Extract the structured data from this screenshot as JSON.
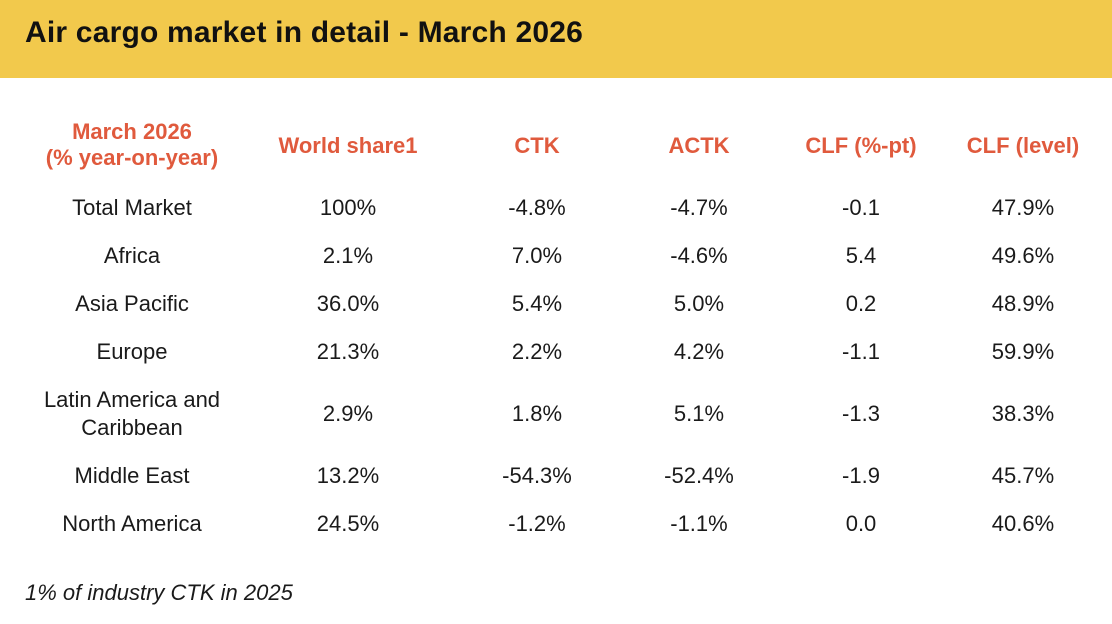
{
  "title": "Air cargo market in detail - March 2026",
  "headers": {
    "region_line1": "March 2026",
    "region_line2": "(% year-on-year)",
    "world_share": "World share1",
    "ctk": "CTK",
    "actk": "ACTK",
    "clf_pt": "CLF (%-pt)",
    "clf_level": "CLF (level)"
  },
  "rows": [
    {
      "region_line1": "Total Market",
      "region_line2": "",
      "world_share": "100%",
      "ctk": "-4.8%",
      "actk": "-4.7%",
      "clf_pt": "-0.1",
      "clf_level": "47.9%"
    },
    {
      "region_line1": "Africa",
      "region_line2": "",
      "world_share": "2.1%",
      "ctk": "7.0%",
      "actk": "-4.6%",
      "clf_pt": "5.4",
      "clf_level": "49.6%"
    },
    {
      "region_line1": "Asia Pacific",
      "region_line2": "",
      "world_share": "36.0%",
      "ctk": "5.4%",
      "actk": "5.0%",
      "clf_pt": "0.2",
      "clf_level": "48.9%"
    },
    {
      "region_line1": "Europe",
      "region_line2": "",
      "world_share": "21.3%",
      "ctk": "2.2%",
      "actk": "4.2%",
      "clf_pt": "-1.1",
      "clf_level": "59.9%"
    },
    {
      "region_line1": "Latin America and",
      "region_line2": "Caribbean",
      "world_share": "2.9%",
      "ctk": "1.8%",
      "actk": "5.1%",
      "clf_pt": "-1.3",
      "clf_level": "38.3%"
    },
    {
      "region_line1": "Middle East",
      "region_line2": "",
      "world_share": "13.2%",
      "ctk": "-54.3%",
      "actk": "-52.4%",
      "clf_pt": "-1.9",
      "clf_level": "45.7%"
    },
    {
      "region_line1": "North America",
      "region_line2": "",
      "world_share": "24.5%",
      "ctk": "-1.2%",
      "actk": "-1.1%",
      "clf_pt": "0.0",
      "clf_level": "40.6%"
    }
  ],
  "footnote": "1% of industry CTK in 2025"
}
